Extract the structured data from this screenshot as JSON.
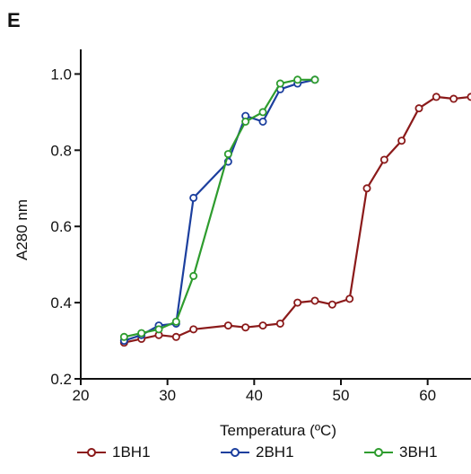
{
  "panel_label": "E",
  "chart_data": {
    "type": "line",
    "title": "",
    "xlabel": "Temperatura (ºC)",
    "ylabel": "A280 nm",
    "xlim": [
      20,
      65
    ],
    "ylim": [
      0.2,
      1.1
    ],
    "xticks": [
      20,
      30,
      40,
      50,
      60
    ],
    "yticks": [
      0.2,
      0.4,
      0.6,
      0.8,
      1.0
    ],
    "xtick_labels": [
      "20",
      "30",
      "40",
      "50",
      "60"
    ],
    "ytick_labels": [
      "0.2",
      "0.4",
      "0.6",
      "0.8",
      "1.0"
    ],
    "grid": false,
    "legend_position": "bottom",
    "series": [
      {
        "name": "1BH1",
        "color": "#8b1a1a",
        "points": [
          [
            25,
            0.295
          ],
          [
            27,
            0.305
          ],
          [
            29,
            0.315
          ],
          [
            31,
            0.31
          ],
          [
            33,
            0.33
          ],
          [
            37,
            0.34
          ],
          [
            39,
            0.335
          ],
          [
            41,
            0.34
          ],
          [
            43,
            0.345
          ],
          [
            45,
            0.4
          ],
          [
            47,
            0.405
          ],
          [
            49,
            0.395
          ],
          [
            51,
            0.41
          ],
          [
            53,
            0.7
          ],
          [
            55,
            0.775
          ],
          [
            57,
            0.825
          ],
          [
            59,
            0.91
          ],
          [
            61,
            0.94
          ],
          [
            63,
            0.935
          ],
          [
            65,
            0.94
          ]
        ]
      },
      {
        "name": "2BH1",
        "color": "#1c3f9e",
        "points": [
          [
            25,
            0.3
          ],
          [
            27,
            0.315
          ],
          [
            29,
            0.34
          ],
          [
            31,
            0.345
          ],
          [
            33,
            0.675
          ],
          [
            37,
            0.77
          ],
          [
            39,
            0.89
          ],
          [
            41,
            0.875
          ],
          [
            43,
            0.96
          ],
          [
            45,
            0.975
          ],
          [
            47,
            0.985
          ]
        ]
      },
      {
        "name": "3BH1",
        "color": "#2e9c2e",
        "points": [
          [
            25,
            0.31
          ],
          [
            27,
            0.32
          ],
          [
            29,
            0.33
          ],
          [
            31,
            0.35
          ],
          [
            33,
            0.47
          ],
          [
            37,
            0.79
          ],
          [
            39,
            0.875
          ],
          [
            41,
            0.9
          ],
          [
            43,
            0.975
          ],
          [
            45,
            0.985
          ],
          [
            47,
            0.985
          ]
        ]
      }
    ]
  }
}
